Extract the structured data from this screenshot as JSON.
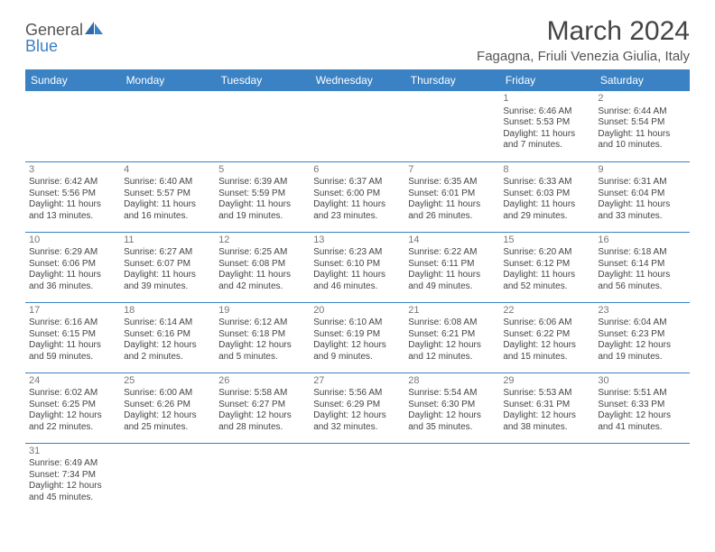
{
  "brand": {
    "general": "General",
    "blue": "Blue"
  },
  "header": {
    "title": "March 2024",
    "location": "Fagagna, Friuli Venezia Giulia, Italy"
  },
  "colors": {
    "header_bg": "#3b82c4",
    "header_fg": "#ffffff",
    "border": "#3b82c4",
    "text": "#444444",
    "daynum": "#777777",
    "logo_blue": "#3b7fc4"
  },
  "dayHeaders": [
    "Sunday",
    "Monday",
    "Tuesday",
    "Wednesday",
    "Thursday",
    "Friday",
    "Saturday"
  ],
  "weeks": [
    [
      null,
      null,
      null,
      null,
      null,
      {
        "n": "1",
        "sr": "Sunrise: 6:46 AM",
        "ss": "Sunset: 5:53 PM",
        "d1": "Daylight: 11 hours",
        "d2": "and 7 minutes."
      },
      {
        "n": "2",
        "sr": "Sunrise: 6:44 AM",
        "ss": "Sunset: 5:54 PM",
        "d1": "Daylight: 11 hours",
        "d2": "and 10 minutes."
      }
    ],
    [
      {
        "n": "3",
        "sr": "Sunrise: 6:42 AM",
        "ss": "Sunset: 5:56 PM",
        "d1": "Daylight: 11 hours",
        "d2": "and 13 minutes."
      },
      {
        "n": "4",
        "sr": "Sunrise: 6:40 AM",
        "ss": "Sunset: 5:57 PM",
        "d1": "Daylight: 11 hours",
        "d2": "and 16 minutes."
      },
      {
        "n": "5",
        "sr": "Sunrise: 6:39 AM",
        "ss": "Sunset: 5:59 PM",
        "d1": "Daylight: 11 hours",
        "d2": "and 19 minutes."
      },
      {
        "n": "6",
        "sr": "Sunrise: 6:37 AM",
        "ss": "Sunset: 6:00 PM",
        "d1": "Daylight: 11 hours",
        "d2": "and 23 minutes."
      },
      {
        "n": "7",
        "sr": "Sunrise: 6:35 AM",
        "ss": "Sunset: 6:01 PM",
        "d1": "Daylight: 11 hours",
        "d2": "and 26 minutes."
      },
      {
        "n": "8",
        "sr": "Sunrise: 6:33 AM",
        "ss": "Sunset: 6:03 PM",
        "d1": "Daylight: 11 hours",
        "d2": "and 29 minutes."
      },
      {
        "n": "9",
        "sr": "Sunrise: 6:31 AM",
        "ss": "Sunset: 6:04 PM",
        "d1": "Daylight: 11 hours",
        "d2": "and 33 minutes."
      }
    ],
    [
      {
        "n": "10",
        "sr": "Sunrise: 6:29 AM",
        "ss": "Sunset: 6:06 PM",
        "d1": "Daylight: 11 hours",
        "d2": "and 36 minutes."
      },
      {
        "n": "11",
        "sr": "Sunrise: 6:27 AM",
        "ss": "Sunset: 6:07 PM",
        "d1": "Daylight: 11 hours",
        "d2": "and 39 minutes."
      },
      {
        "n": "12",
        "sr": "Sunrise: 6:25 AM",
        "ss": "Sunset: 6:08 PM",
        "d1": "Daylight: 11 hours",
        "d2": "and 42 minutes."
      },
      {
        "n": "13",
        "sr": "Sunrise: 6:23 AM",
        "ss": "Sunset: 6:10 PM",
        "d1": "Daylight: 11 hours",
        "d2": "and 46 minutes."
      },
      {
        "n": "14",
        "sr": "Sunrise: 6:22 AM",
        "ss": "Sunset: 6:11 PM",
        "d1": "Daylight: 11 hours",
        "d2": "and 49 minutes."
      },
      {
        "n": "15",
        "sr": "Sunrise: 6:20 AM",
        "ss": "Sunset: 6:12 PM",
        "d1": "Daylight: 11 hours",
        "d2": "and 52 minutes."
      },
      {
        "n": "16",
        "sr": "Sunrise: 6:18 AM",
        "ss": "Sunset: 6:14 PM",
        "d1": "Daylight: 11 hours",
        "d2": "and 56 minutes."
      }
    ],
    [
      {
        "n": "17",
        "sr": "Sunrise: 6:16 AM",
        "ss": "Sunset: 6:15 PM",
        "d1": "Daylight: 11 hours",
        "d2": "and 59 minutes."
      },
      {
        "n": "18",
        "sr": "Sunrise: 6:14 AM",
        "ss": "Sunset: 6:16 PM",
        "d1": "Daylight: 12 hours",
        "d2": "and 2 minutes."
      },
      {
        "n": "19",
        "sr": "Sunrise: 6:12 AM",
        "ss": "Sunset: 6:18 PM",
        "d1": "Daylight: 12 hours",
        "d2": "and 5 minutes."
      },
      {
        "n": "20",
        "sr": "Sunrise: 6:10 AM",
        "ss": "Sunset: 6:19 PM",
        "d1": "Daylight: 12 hours",
        "d2": "and 9 minutes."
      },
      {
        "n": "21",
        "sr": "Sunrise: 6:08 AM",
        "ss": "Sunset: 6:21 PM",
        "d1": "Daylight: 12 hours",
        "d2": "and 12 minutes."
      },
      {
        "n": "22",
        "sr": "Sunrise: 6:06 AM",
        "ss": "Sunset: 6:22 PM",
        "d1": "Daylight: 12 hours",
        "d2": "and 15 minutes."
      },
      {
        "n": "23",
        "sr": "Sunrise: 6:04 AM",
        "ss": "Sunset: 6:23 PM",
        "d1": "Daylight: 12 hours",
        "d2": "and 19 minutes."
      }
    ],
    [
      {
        "n": "24",
        "sr": "Sunrise: 6:02 AM",
        "ss": "Sunset: 6:25 PM",
        "d1": "Daylight: 12 hours",
        "d2": "and 22 minutes."
      },
      {
        "n": "25",
        "sr": "Sunrise: 6:00 AM",
        "ss": "Sunset: 6:26 PM",
        "d1": "Daylight: 12 hours",
        "d2": "and 25 minutes."
      },
      {
        "n": "26",
        "sr": "Sunrise: 5:58 AM",
        "ss": "Sunset: 6:27 PM",
        "d1": "Daylight: 12 hours",
        "d2": "and 28 minutes."
      },
      {
        "n": "27",
        "sr": "Sunrise: 5:56 AM",
        "ss": "Sunset: 6:29 PM",
        "d1": "Daylight: 12 hours",
        "d2": "and 32 minutes."
      },
      {
        "n": "28",
        "sr": "Sunrise: 5:54 AM",
        "ss": "Sunset: 6:30 PM",
        "d1": "Daylight: 12 hours",
        "d2": "and 35 minutes."
      },
      {
        "n": "29",
        "sr": "Sunrise: 5:53 AM",
        "ss": "Sunset: 6:31 PM",
        "d1": "Daylight: 12 hours",
        "d2": "and 38 minutes."
      },
      {
        "n": "30",
        "sr": "Sunrise: 5:51 AM",
        "ss": "Sunset: 6:33 PM",
        "d1": "Daylight: 12 hours",
        "d2": "and 41 minutes."
      }
    ],
    [
      {
        "n": "31",
        "sr": "Sunrise: 6:49 AM",
        "ss": "Sunset: 7:34 PM",
        "d1": "Daylight: 12 hours",
        "d2": "and 45 minutes."
      },
      null,
      null,
      null,
      null,
      null,
      null
    ]
  ]
}
